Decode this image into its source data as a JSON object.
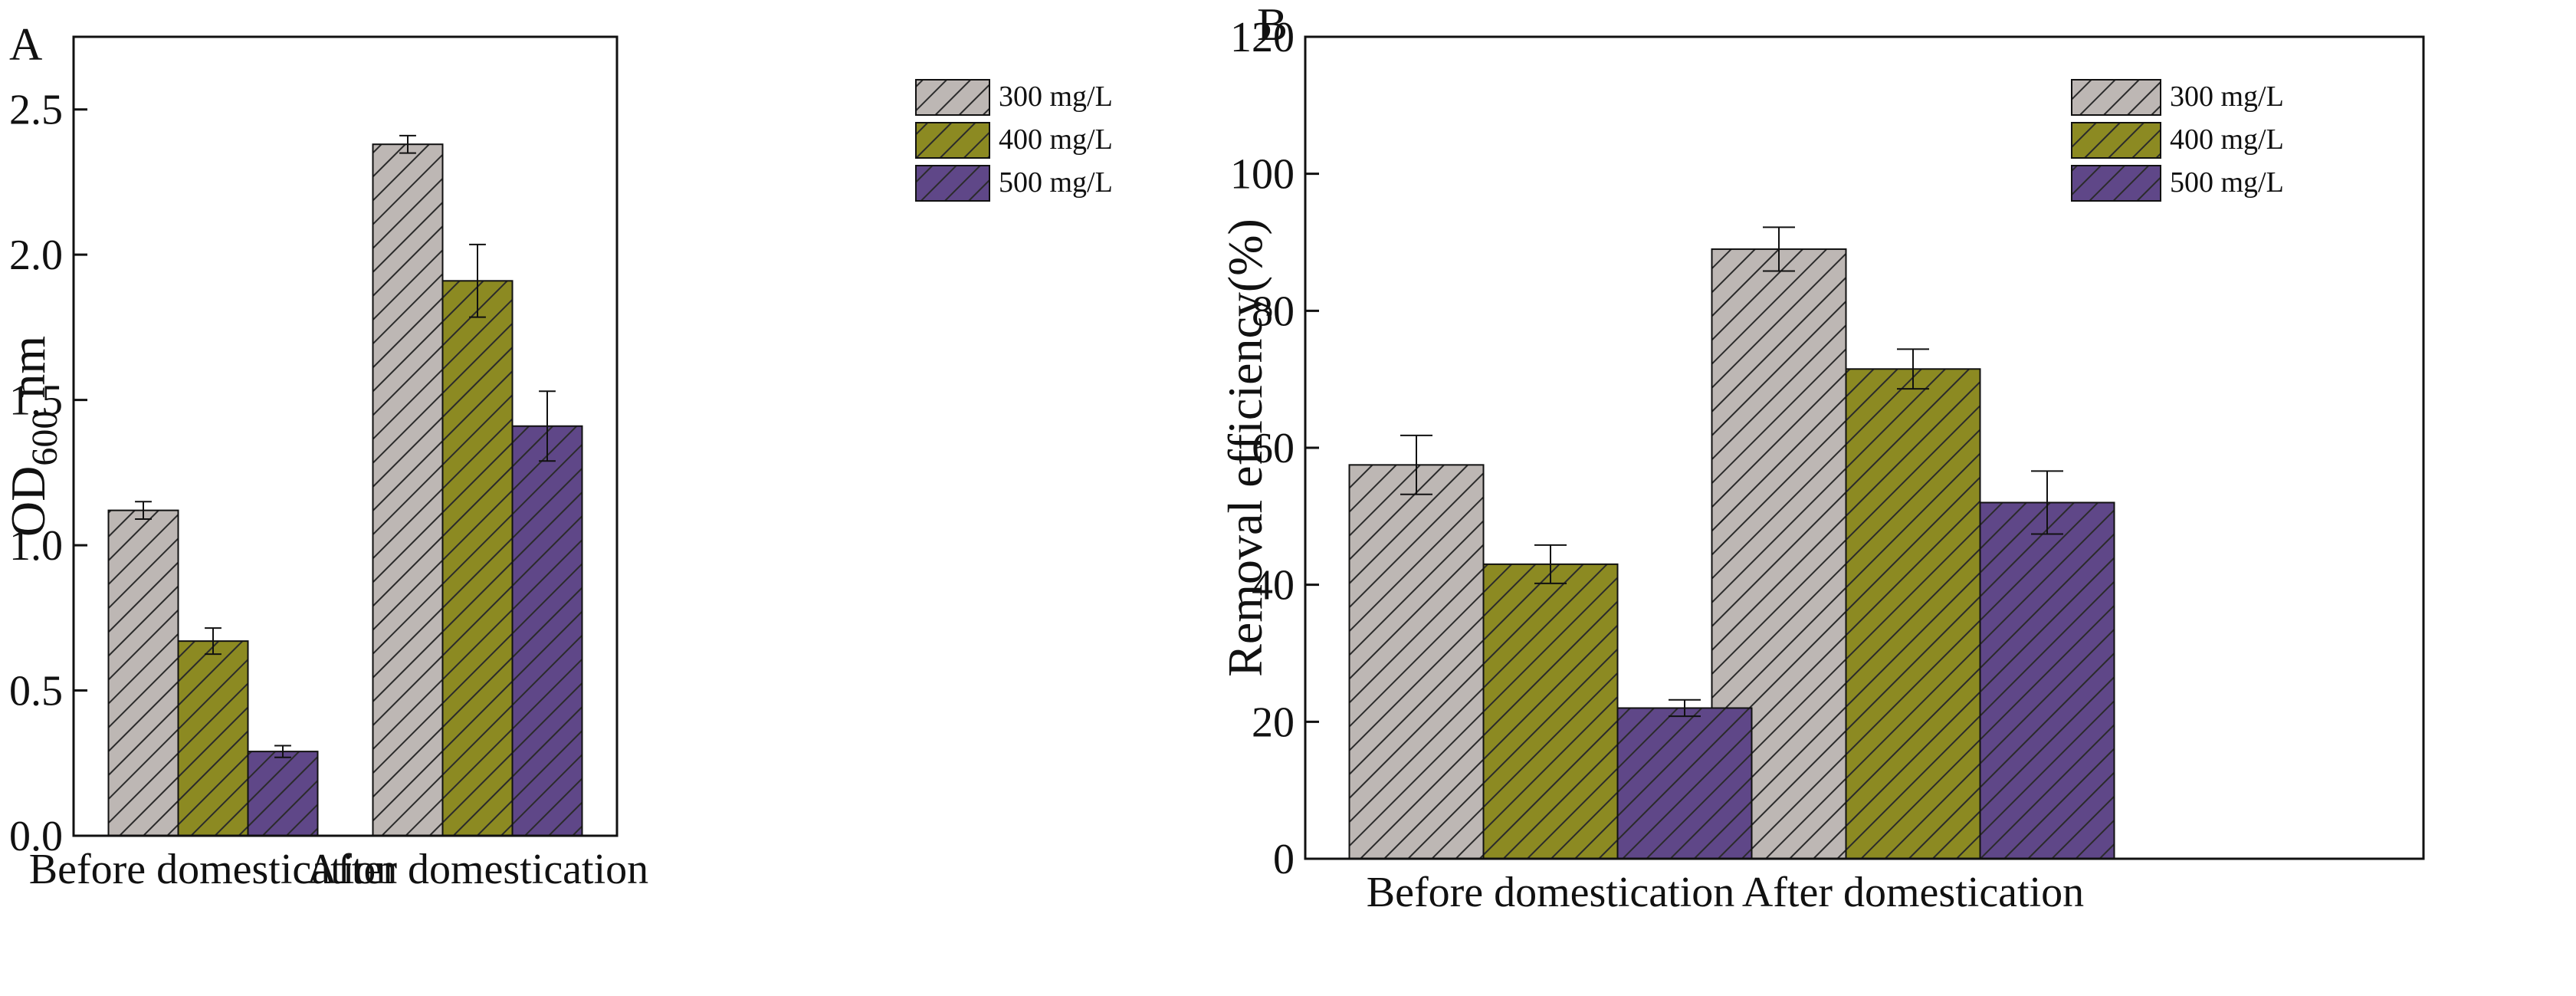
{
  "chart_data": [
    {
      "panel": "A",
      "type": "bar",
      "title": "",
      "xlabel": "",
      "ylabel": "OD",
      "ylabel_sub": "600",
      "ylabel_suffix": " nm",
      "ylim": [
        0,
        2.75
      ],
      "yticks": [
        0.0,
        0.5,
        1.0,
        1.5,
        2.0,
        2.5
      ],
      "ytick_labels": [
        "0.0",
        "0.5",
        "1.0",
        "1.5",
        "2.0",
        "2.5"
      ],
      "categories": [
        "Before domestication",
        "After domestication"
      ],
      "series": [
        {
          "name": "300 mg/L",
          "values": [
            1.12,
            2.38
          ],
          "errors": [
            0.03,
            0.03
          ]
        },
        {
          "name": "400 mg/L",
          "values": [
            0.67,
            1.91
          ],
          "errors": [
            0.045,
            0.125
          ]
        },
        {
          "name": "500 mg/L",
          "values": [
            0.29,
            1.41
          ],
          "errors": [
            0.02,
            0.12
          ]
        }
      ],
      "legend_position": "top-right"
    },
    {
      "panel": "B",
      "type": "bar",
      "title": "",
      "xlabel": "",
      "ylabel": "Removal efficiency(%)",
      "ylim": [
        0,
        120
      ],
      "yticks": [
        0,
        20,
        40,
        60,
        80,
        100,
        120
      ],
      "ytick_labels": [
        "0",
        "20",
        "40",
        "60",
        "80",
        "100",
        "120"
      ],
      "categories": [
        "Before domestication",
        "After domestication"
      ],
      "series": [
        {
          "name": "300 mg/L",
          "values": [
            57.5,
            89.0
          ],
          "errors": [
            4.3,
            3.2
          ]
        },
        {
          "name": "400 mg/L",
          "values": [
            43.0,
            71.5
          ],
          "errors": [
            2.8,
            2.9
          ]
        },
        {
          "name": "500 mg/L",
          "values": [
            22.0,
            52.0
          ],
          "errors": [
            1.2,
            4.6
          ]
        }
      ],
      "legend_position": "top-right"
    }
  ],
  "colors": {
    "300 mg/L": "#bdb7b4",
    "400 mg/L": "#8c8a22",
    "500 mg/L": "#5f4788",
    "hatch": "#2b2b2b",
    "axis": "#111111"
  }
}
